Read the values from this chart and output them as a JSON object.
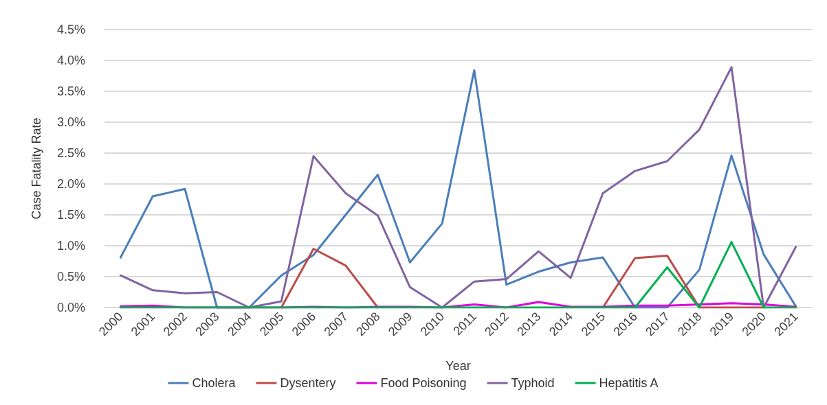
{
  "chart_data": {
    "type": "line",
    "xlabel": "Year",
    "ylabel": "Case Fatality Rate",
    "categories": [
      "2000",
      "2001",
      "2002",
      "2003",
      "2004",
      "2005",
      "2006",
      "2007",
      "2008",
      "2009",
      "2010",
      "2011",
      "2012",
      "2013",
      "2014",
      "2015",
      "2016",
      "2017",
      "2018",
      "2019",
      "2020",
      "2021"
    ],
    "series": [
      {
        "name": "Cholera",
        "color": "#4a7ebb",
        "values": [
          0.81,
          1.8,
          1.92,
          0,
          0,
          0.52,
          0.85,
          1.5,
          2.15,
          0.73,
          1.36,
          3.84,
          0.37,
          0.58,
          0.73,
          0.81,
          0,
          0,
          0.61,
          2.46,
          0.86,
          0.02
        ]
      },
      {
        "name": "Dysentery",
        "color": "#be4b48",
        "values": [
          null,
          null,
          null,
          null,
          null,
          0,
          0.95,
          0.68,
          0,
          null,
          null,
          null,
          null,
          null,
          null,
          0,
          0.8,
          0.84,
          0,
          0,
          0,
          null
        ]
      },
      {
        "name": "Food Poisoning",
        "color": "#dd00dd",
        "values": [
          0.02,
          0.03,
          0,
          0,
          0,
          0,
          0.01,
          0,
          0.01,
          0.01,
          0,
          0.05,
          0,
          0.09,
          0.01,
          0.01,
          0.03,
          0.03,
          0.05,
          0.07,
          0.05,
          0.01
        ]
      },
      {
        "name": "Typhoid",
        "color": "#8064a2",
        "values": [
          0.52,
          0.28,
          0.23,
          0.25,
          0,
          0.1,
          2.45,
          1.85,
          1.49,
          0.33,
          0,
          0.42,
          0.46,
          0.91,
          0.48,
          1.85,
          2.21,
          2.37,
          2.88,
          3.89,
          0,
          0.98
        ]
      },
      {
        "name": "Hepatitis A",
        "color": "#00b050",
        "values": [
          0,
          0,
          0,
          0,
          0,
          0,
          0,
          0,
          0,
          0,
          0,
          0,
          0,
          0,
          0,
          0,
          0,
          0.65,
          0,
          1.06,
          0,
          0
        ]
      }
    ],
    "ylim": [
      0,
      4.5
    ],
    "yticks": [
      {
        "value": 0,
        "label": "0.0%"
      },
      {
        "value": 0.5,
        "label": "0.5%"
      },
      {
        "value": 1,
        "label": "1.0%"
      },
      {
        "value": 1.5,
        "label": "1.5%"
      },
      {
        "value": 2,
        "label": "2.0%"
      },
      {
        "value": 2.5,
        "label": "2.5%"
      },
      {
        "value": 3,
        "label": "3.0%"
      },
      {
        "value": 3.5,
        "label": "3.5%"
      },
      {
        "value": 4,
        "label": "4.0%"
      },
      {
        "value": 4.5,
        "label": "4.5%"
      }
    ],
    "grid": "y",
    "legend": "bottom",
    "marker": "none",
    "line_style": "solid"
  }
}
